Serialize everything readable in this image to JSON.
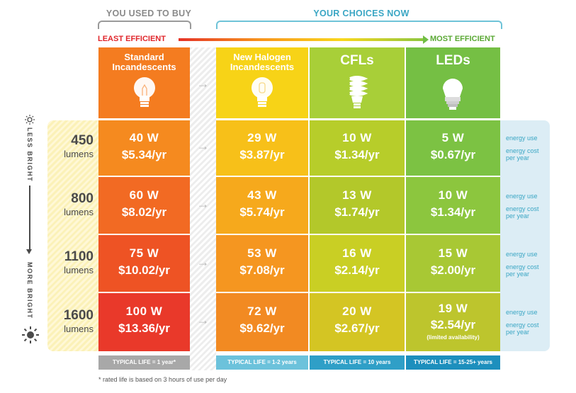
{
  "headers": {
    "used_to_buy": "YOU USED TO BUY",
    "choices_now": "YOUR CHOICES NOW",
    "least_efficient": "LEAST EFFICIENT",
    "most_efficient": "MOST EFFICIENT"
  },
  "columns": [
    {
      "title_line1": "Standard",
      "title_line2": "Incandescents",
      "icon": "incandescent-bulb-icon",
      "footer": "TYPICAL LIFE = 1 year*"
    },
    {
      "title_line1": "New Halogen",
      "title_line2": "Incandescents",
      "icon": "halogen-bulb-icon",
      "footer": "TYPICAL LIFE = 1-2 years"
    },
    {
      "title_line1": "CFLs",
      "title_line2": "",
      "icon": "cfl-bulb-icon",
      "footer": "TYPICAL LIFE = 10 years"
    },
    {
      "title_line1": "LEDs",
      "title_line2": "",
      "icon": "led-bulb-icon",
      "footer": "TYPICAL LIFE = 15-25+ years"
    }
  ],
  "rows": [
    {
      "lumens": "450",
      "unit": "lumens",
      "cells": [
        [
          "40 W",
          "$5.34/yr"
        ],
        [
          "29 W",
          "$3.87/yr"
        ],
        [
          "10 W",
          "$1.34/yr"
        ],
        [
          "5 W",
          "$0.67/yr"
        ]
      ],
      "legend_use": "energy use",
      "legend_cost": "energy cost per year"
    },
    {
      "lumens": "800",
      "unit": "lumens",
      "cells": [
        [
          "60 W",
          "$8.02/yr"
        ],
        [
          "43 W",
          "$5.74/yr"
        ],
        [
          "13 W",
          "$1.74/yr"
        ],
        [
          "10 W",
          "$1.34/yr"
        ]
      ],
      "legend_use": "energy use",
      "legend_cost": "energy cost per year"
    },
    {
      "lumens": "1100",
      "unit": "lumens",
      "cells": [
        [
          "75 W",
          "$10.02/yr"
        ],
        [
          "53 W",
          "$7.08/yr"
        ],
        [
          "16 W",
          "$2.14/yr"
        ],
        [
          "15 W",
          "$2.00/yr"
        ]
      ],
      "legend_use": "energy use",
      "legend_cost": "energy cost per year"
    },
    {
      "lumens": "1600",
      "unit": "lumens",
      "cells": [
        [
          "100 W",
          "$13.36/yr"
        ],
        [
          "72 W",
          "$9.62/yr"
        ],
        [
          "20 W",
          "$2.67/yr"
        ],
        [
          "19 W",
          "$2.54/yr"
        ]
      ],
      "legend_use": "energy use",
      "legend_cost": "energy cost per year",
      "note": "(limited availability)"
    }
  ],
  "side": {
    "less_bright": "LESS BRIGHT",
    "more_bright": "MORE BRIGHT"
  },
  "footnote": "* rated life is based on 3 hours of use per day",
  "colors": {
    "col0": [
      "#f58a1f",
      "#f26a23",
      "#ee5324",
      "#e9392a"
    ],
    "col1": [
      "#f7c019",
      "#f6a91c",
      "#f59620",
      "#f28a22"
    ],
    "col2": [
      "#b7cd2a",
      "#b3c82a",
      "#c9cf24",
      "#d4c523"
    ],
    "col3": [
      "#7cc243",
      "#8cc63e",
      "#a8c834",
      "#bdc52d"
    ],
    "head": [
      "#f47c20",
      "#f7d317",
      "#a8cf38",
      "#75bf44"
    ],
    "footer": [
      "#a8a8a8",
      "#6cc2db",
      "#2f9fc7",
      "#1d8fbd"
    ]
  }
}
